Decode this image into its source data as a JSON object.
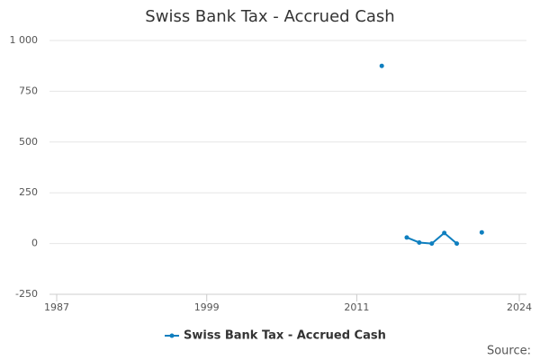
{
  "chart_data": {
    "type": "line",
    "title": "Swiss Bank Tax - Accrued Cash",
    "x": [
      2013,
      2014,
      2015,
      2016,
      2017,
      2018,
      2019,
      2020,
      2021
    ],
    "series": [
      {
        "name": "Swiss Bank Tax - Accrued Cash",
        "color": "#0f7fbf",
        "values": [
          875,
          null,
          30,
          5,
          0,
          52,
          0,
          null,
          55
        ]
      }
    ],
    "xlim": [
      1987,
      2024
    ],
    "xticks": [
      1987,
      1999,
      2011,
      2024
    ],
    "ylim": [
      -250,
      1000
    ],
    "yticks": [
      -250,
      0,
      250,
      500,
      750,
      {
        "value": 1000,
        "label": "1 000"
      }
    ],
    "grid": true,
    "legend": "bottom",
    "source": "Source:"
  }
}
